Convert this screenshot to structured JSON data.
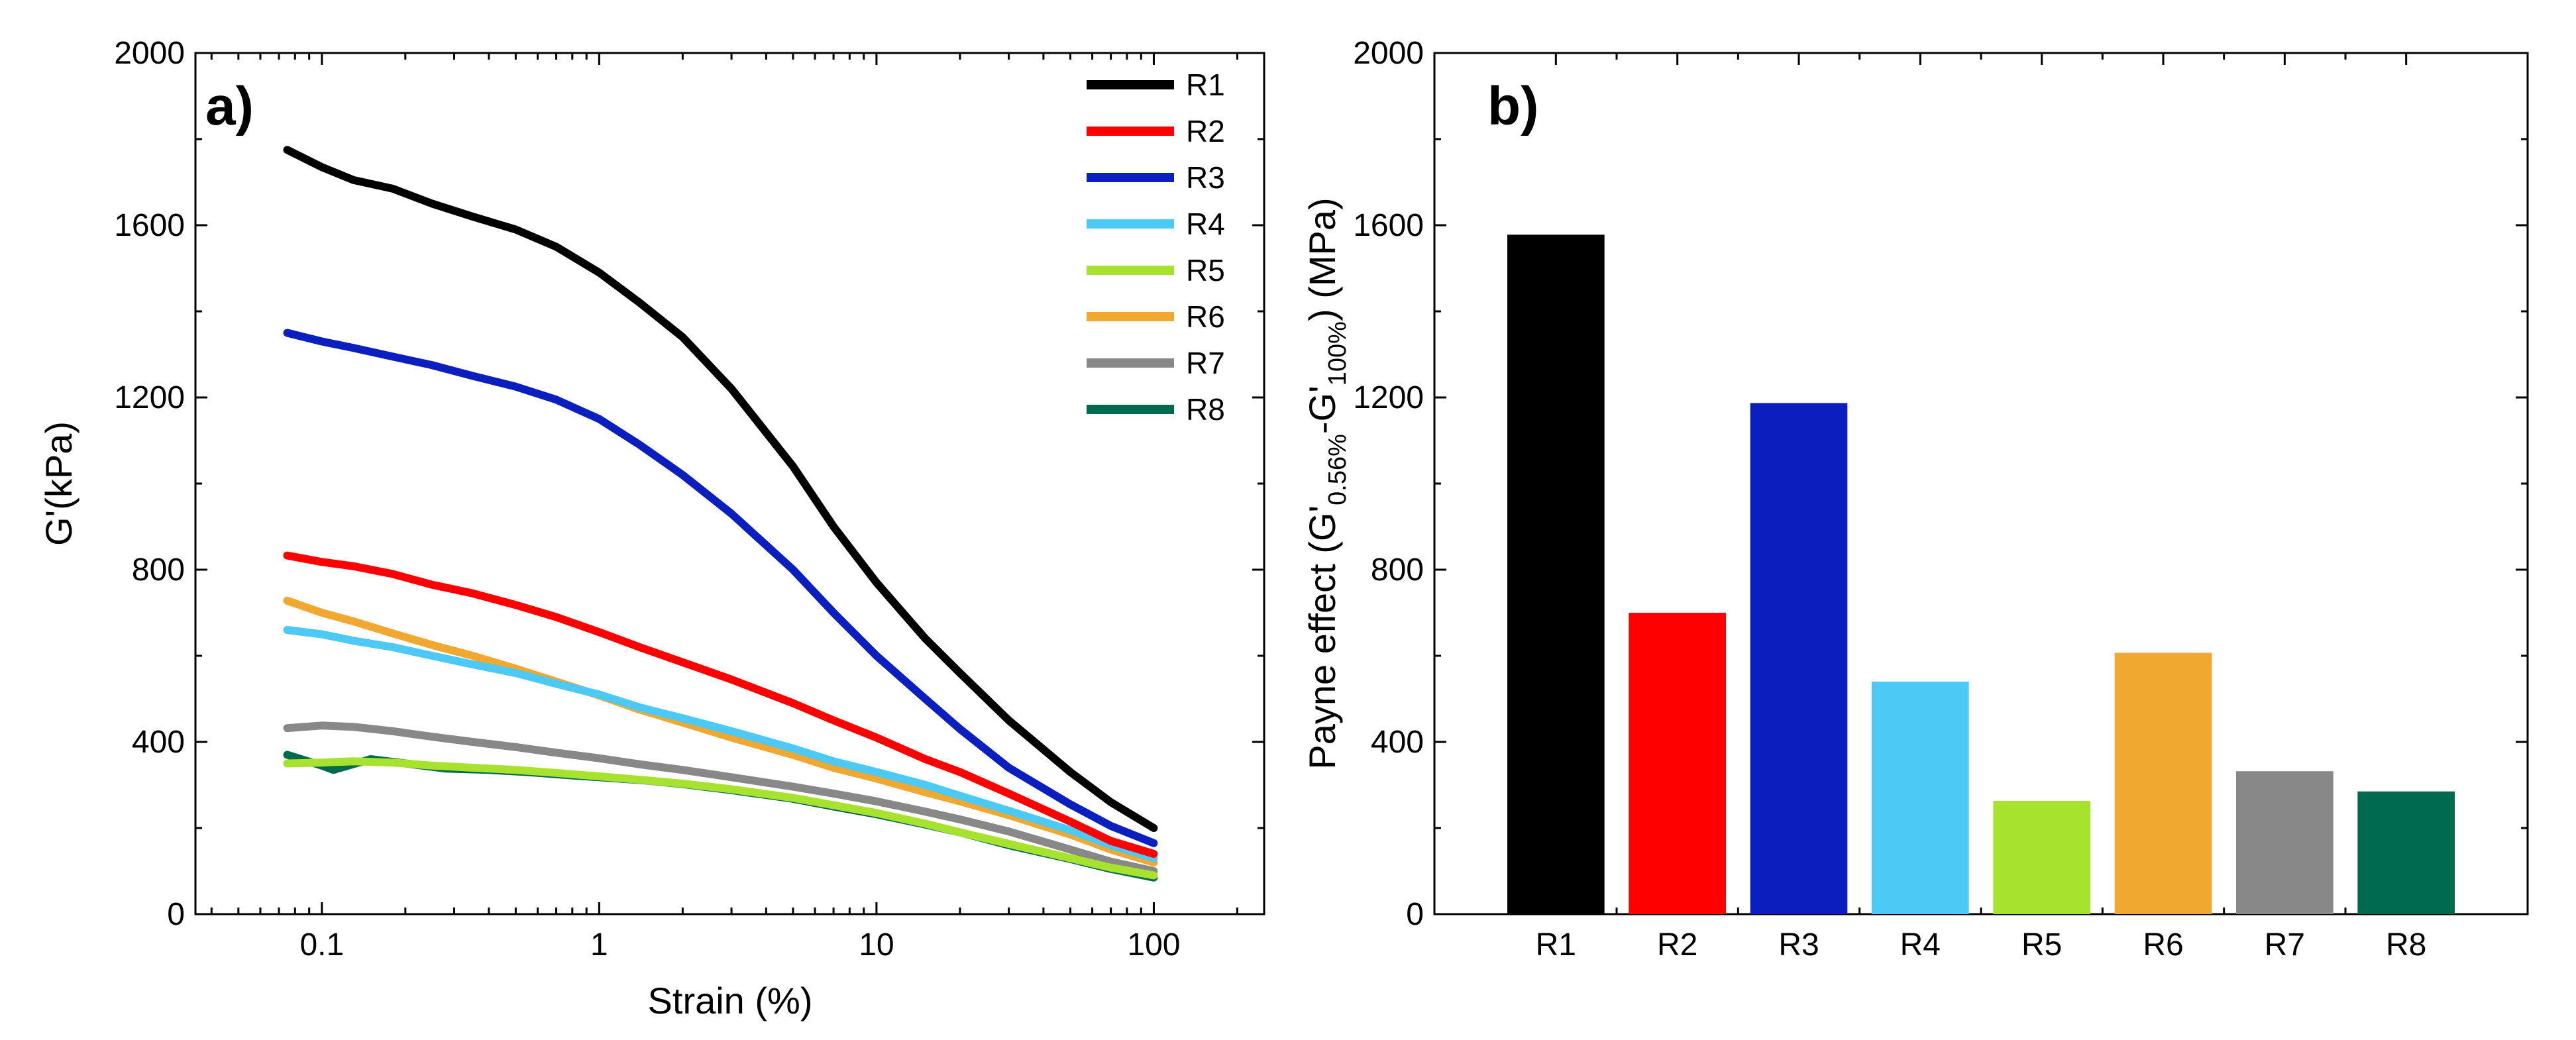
{
  "colors": {
    "R1": "#000000",
    "R2": "#ff0000",
    "R3": "#0a1fbe",
    "R4": "#4dc9f6",
    "R5": "#a6e22e",
    "R6": "#f0a830",
    "R7": "#888888",
    "R8": "#006a4e"
  },
  "chart_data": [
    {
      "panel": "a)",
      "type": "line",
      "xlabel": "Strain (%)",
      "ylabel": "G'(kPa)",
      "xscale": "log",
      "xlim": [
        0.035,
        250
      ],
      "ylim": [
        0,
        2000
      ],
      "xticks": [
        0.1,
        1,
        10,
        100
      ],
      "xtick_labels": [
        "0.1",
        "1",
        "10",
        "100"
      ],
      "yticks": [
        0,
        400,
        800,
        1200,
        1600,
        2000
      ],
      "ytick_labels": [
        "0",
        "400",
        "800",
        "1200",
        "1600",
        "2000"
      ],
      "grid": false,
      "legend_position": "top-right",
      "series": [
        {
          "name": "R1",
          "x": [
            0.075,
            0.1,
            0.13,
            0.18,
            0.25,
            0.35,
            0.5,
            0.7,
            1,
            1.4,
            2,
            3,
            5,
            7,
            10,
            15,
            20,
            30,
            50,
            70,
            100
          ],
          "y": [
            1775,
            1735,
            1705,
            1685,
            1650,
            1620,
            1590,
            1550,
            1490,
            1420,
            1340,
            1220,
            1040,
            900,
            770,
            640,
            560,
            450,
            330,
            260,
            200
          ]
        },
        {
          "name": "R2",
          "x": [
            0.075,
            0.1,
            0.13,
            0.18,
            0.25,
            0.35,
            0.5,
            0.7,
            1,
            1.4,
            2,
            3,
            5,
            7,
            10,
            15,
            20,
            30,
            50,
            70,
            100
          ],
          "y": [
            833,
            818,
            808,
            790,
            765,
            745,
            718,
            690,
            655,
            620,
            585,
            545,
            490,
            450,
            410,
            360,
            330,
            280,
            215,
            170,
            140
          ]
        },
        {
          "name": "R3",
          "x": [
            0.075,
            0.1,
            0.13,
            0.18,
            0.25,
            0.35,
            0.5,
            0.7,
            1,
            1.4,
            2,
            3,
            5,
            7,
            10,
            15,
            20,
            30,
            50,
            70,
            100
          ],
          "y": [
            1350,
            1330,
            1315,
            1295,
            1275,
            1250,
            1225,
            1195,
            1150,
            1090,
            1020,
            930,
            800,
            700,
            600,
            500,
            430,
            340,
            255,
            205,
            165
          ]
        },
        {
          "name": "R4",
          "x": [
            0.075,
            0.1,
            0.13,
            0.18,
            0.25,
            0.35,
            0.5,
            0.7,
            1,
            1.4,
            2,
            3,
            5,
            7,
            10,
            15,
            20,
            30,
            50,
            70,
            100
          ],
          "y": [
            660,
            650,
            635,
            620,
            600,
            580,
            560,
            535,
            510,
            480,
            455,
            425,
            385,
            355,
            330,
            300,
            275,
            240,
            195,
            160,
            130
          ]
        },
        {
          "name": "R5",
          "x": [
            0.075,
            0.1,
            0.13,
            0.18,
            0.25,
            0.35,
            0.5,
            0.7,
            1,
            1.4,
            2,
            3,
            5,
            7,
            10,
            15,
            20,
            30,
            50,
            70,
            100
          ],
          "y": [
            350,
            352,
            355,
            352,
            345,
            340,
            335,
            328,
            320,
            312,
            303,
            290,
            270,
            253,
            235,
            210,
            190,
            163,
            130,
            108,
            90
          ]
        },
        {
          "name": "R6",
          "x": [
            0.075,
            0.1,
            0.13,
            0.18,
            0.25,
            0.35,
            0.5,
            0.7,
            1,
            1.4,
            2,
            3,
            5,
            7,
            10,
            15,
            20,
            30,
            50,
            70,
            100
          ],
          "y": [
            728,
            700,
            680,
            652,
            625,
            600,
            570,
            540,
            508,
            475,
            445,
            410,
            370,
            340,
            315,
            283,
            262,
            230,
            185,
            150,
            120
          ]
        },
        {
          "name": "R7",
          "x": [
            0.075,
            0.1,
            0.13,
            0.18,
            0.25,
            0.35,
            0.5,
            0.7,
            1,
            1.4,
            2,
            3,
            5,
            7,
            10,
            15,
            20,
            30,
            50,
            70,
            100
          ],
          "y": [
            432,
            438,
            435,
            425,
            412,
            400,
            388,
            375,
            362,
            348,
            335,
            318,
            296,
            280,
            262,
            238,
            220,
            192,
            150,
            122,
            100
          ]
        },
        {
          "name": "R8",
          "x": [
            0.075,
            0.1,
            0.11,
            0.15,
            0.2,
            0.28,
            0.4,
            0.55,
            0.8,
            1,
            1.5,
            2,
            3,
            5,
            7,
            10,
            15,
            20,
            30,
            50,
            70,
            100
          ],
          "y": [
            370,
            345,
            335,
            360,
            350,
            338,
            335,
            330,
            322,
            318,
            310,
            302,
            288,
            268,
            250,
            232,
            208,
            190,
            160,
            128,
            105,
            85
          ]
        }
      ]
    },
    {
      "panel": "b)",
      "type": "bar",
      "ylabel_prefix": "Payne effect (G'",
      "ylabel_sub1": "0.56%",
      "ylabel_mid": "-G'",
      "ylabel_sub2": "100%",
      "ylabel_suffix": ") (MPa)",
      "categories": [
        "R1",
        "R2",
        "R3",
        "R4",
        "R5",
        "R6",
        "R7",
        "R8"
      ],
      "values": [
        1578,
        700,
        1187,
        540,
        263,
        607,
        332,
        285
      ],
      "ylim": [
        0,
        2000
      ],
      "yticks": [
        0,
        400,
        800,
        1200,
        1600,
        2000
      ],
      "ytick_labels": [
        "0",
        "400",
        "800",
        "1200",
        "1600",
        "2000"
      ],
      "grid": false
    }
  ]
}
